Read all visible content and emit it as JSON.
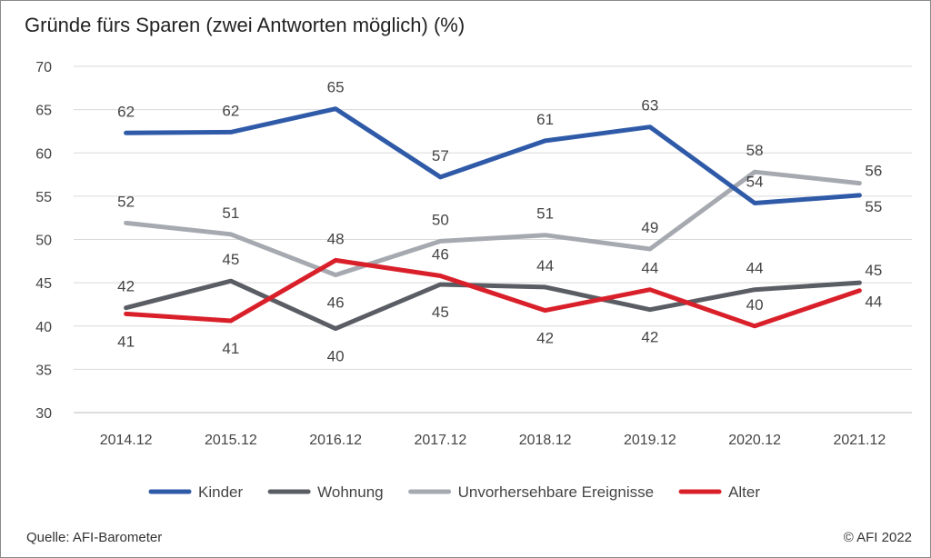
{
  "title": "Gründe fürs Sparen (zwei Antworten möglich) (%)",
  "source": "Quelle: AFI-Barometer",
  "copyright": "© AFI 2022",
  "chart_data": {
    "type": "line",
    "categories": [
      "2014.12",
      "2015.12",
      "2016.12",
      "2017.12",
      "2018.12",
      "2019.12",
      "2020.12",
      "2021.12"
    ],
    "ylim": [
      30,
      70
    ],
    "yticks": [
      30,
      35,
      40,
      45,
      50,
      55,
      60,
      65,
      70
    ],
    "grid": true,
    "legend_position": "bottom",
    "series": [
      {
        "name": "Wohnung",
        "color": "#5a5d63",
        "values": [
          42.1,
          45.2,
          39.7,
          44.8,
          44.5,
          41.9,
          44.2,
          45.0
        ],
        "labels": [
          "42",
          "45",
          "40",
          "45",
          "44",
          "42",
          "44",
          "45"
        ],
        "label_pos": [
          "above",
          "above",
          "below",
          "below",
          "above",
          "below",
          "above",
          "above"
        ]
      },
      {
        "name": "Unvorhersehbare Ereignisse",
        "color": "#a6aab0",
        "values": [
          51.9,
          50.6,
          45.9,
          49.8,
          50.5,
          48.9,
          57.8,
          56.5
        ],
        "labels": [
          "52",
          "51",
          "46",
          "50",
          "51",
          "49",
          "58",
          "56"
        ],
        "label_pos": [
          "above",
          "above",
          "below",
          "above",
          "above",
          "above",
          "above",
          "above"
        ]
      },
      {
        "name": "Alter",
        "color": "#d9202a",
        "values": [
          41.4,
          40.6,
          47.6,
          45.8,
          41.8,
          44.2,
          40.0,
          44.1
        ],
        "labels": [
          "41",
          "41",
          "48",
          "46",
          "42",
          "44",
          "40",
          "44"
        ],
        "label_pos": [
          "below",
          "below",
          "above",
          "above",
          "below",
          "above",
          "above",
          "below"
        ]
      },
      {
        "name": "Kinder",
        "color": "#2f5aa8",
        "values": [
          62.3,
          62.4,
          65.1,
          57.2,
          61.4,
          63.0,
          54.2,
          55.1
        ],
        "labels": [
          "62",
          "62",
          "65",
          "57",
          "61",
          "63",
          "54",
          "55"
        ],
        "label_pos": [
          "above",
          "above",
          "above",
          "above",
          "above",
          "above",
          "above",
          "below"
        ]
      }
    ],
    "legend": [
      {
        "name": "Kinder",
        "color": "#2f5aa8"
      },
      {
        "name": "Wohnung",
        "color": "#5a5d63"
      },
      {
        "name": "Unvorhersehbare Ereignisse",
        "color": "#a6aab0"
      },
      {
        "name": "Alter",
        "color": "#d9202a"
      }
    ]
  }
}
